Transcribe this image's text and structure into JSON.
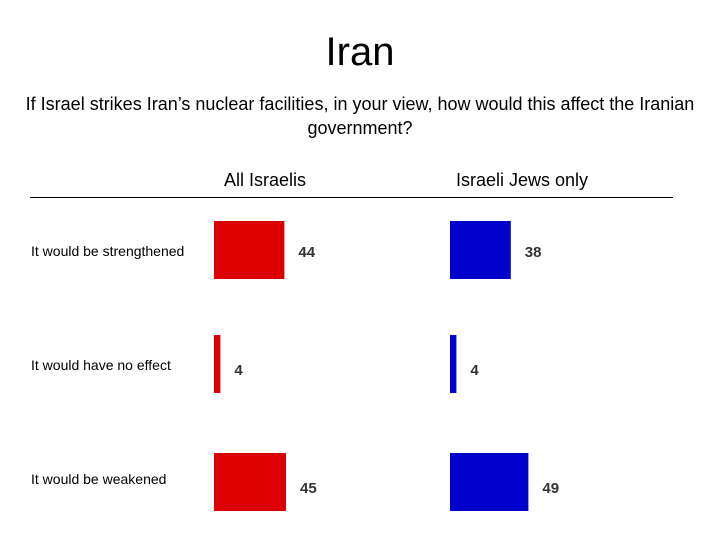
{
  "chart_data": {
    "type": "bar",
    "orientation": "horizontal",
    "title": "Iran",
    "subtitle": "If Israel strikes Iran’s nuclear facilities, in your view, how would this affect the Iranian government?",
    "categories": [
      "It would be strengthened",
      "It would have no effect",
      "It would be weakened"
    ],
    "series": [
      {
        "name": "All Israelis",
        "values": [
          44,
          4,
          45
        ],
        "color": "#dd0000"
      },
      {
        "name": "Israeli Jews only",
        "values": [
          38,
          4,
          49
        ],
        "color": "#0000cc"
      }
    ],
    "xlim": [
      0,
      100
    ],
    "grid": false,
    "legend": "column headers above bars"
  }
}
